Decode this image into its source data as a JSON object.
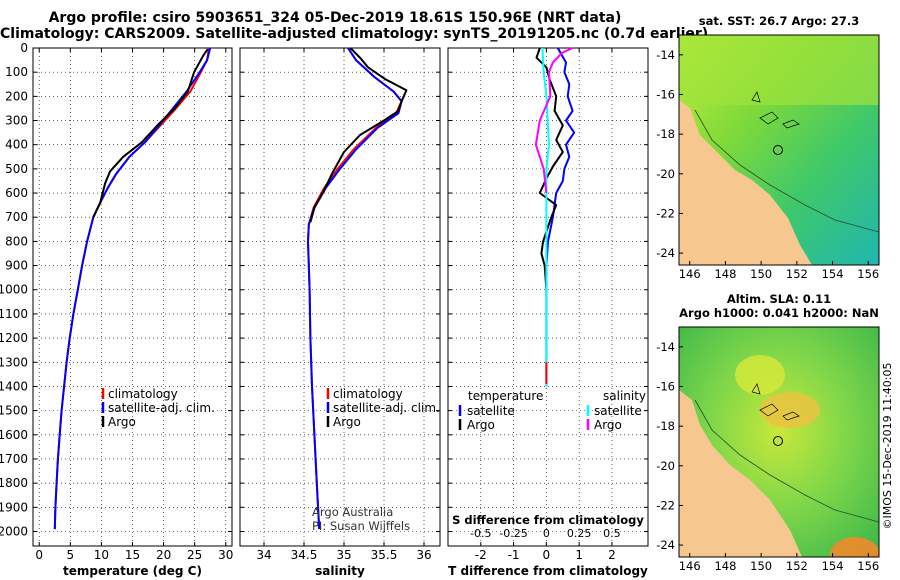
{
  "header": {
    "title_line1": "Argo profile: csiro 5903651_324 05-Dec-2019 18.61S 150.96E (NRT data)",
    "title_line2": "Climatology: CARS2009. Satellite-adjusted climatology: synTS_20191205.nc (0.7d earlier)"
  },
  "colors": {
    "climatology": "#ff0000",
    "satellite": "#0000ff",
    "argo": "#000000",
    "sat_salinity": "#00ffff",
    "argo_salinity": "#ff00ff",
    "land": "#f6c88f"
  },
  "depth_axis": {
    "ticks": [
      "0",
      "100",
      "200",
      "300",
      "400",
      "500",
      "600",
      "700",
      "800",
      "900",
      "1000",
      "1100",
      "1200",
      "1300",
      "1400",
      "1500",
      "1600",
      "1700",
      "1800",
      "1900",
      "2000"
    ],
    "range": [
      0,
      2060
    ]
  },
  "chart_data": [
    {
      "type": "line",
      "name": "temperature",
      "xlabel": "temperature (deg C)",
      "ylabel": "depth",
      "xlim": [
        -1,
        31
      ],
      "ylim": [
        2060,
        0
      ],
      "xticks": [
        "0",
        "5",
        "10",
        "15",
        "20",
        "25",
        "30"
      ],
      "xtick_values": [
        0,
        5,
        10,
        15,
        20,
        25,
        30
      ],
      "legend": [
        "climatology",
        "satellite-adj. clim.",
        "Argo"
      ],
      "series": [
        {
          "name": "climatology",
          "color": "#ff0000",
          "points": [
            [
              27.3,
              0
            ],
            [
              27.0,
              50
            ],
            [
              26.0,
              100
            ],
            [
              24.3,
              180
            ],
            [
              22.0,
              250
            ],
            [
              19.5,
              320
            ],
            [
              17.0,
              390
            ],
            [
              14.5,
              450
            ],
            [
              12.4,
              520
            ],
            [
              11.0,
              580
            ],
            [
              9.8,
              640
            ],
            [
              8.7,
              700
            ],
            [
              7.7,
              800
            ],
            [
              6.9,
              900
            ],
            [
              6.2,
              1000
            ],
            [
              5.5,
              1100
            ],
            [
              4.9,
              1200
            ],
            [
              4.4,
              1300
            ],
            [
              4.0,
              1400
            ],
            [
              3.6,
              1500
            ],
            [
              3.3,
              1600
            ],
            [
              3.0,
              1700
            ],
            [
              2.8,
              1800
            ],
            [
              2.6,
              1900
            ],
            [
              2.5,
              1990
            ]
          ]
        },
        {
          "name": "satellite-adj. clim.",
          "color": "#0000ff",
          "points": [
            [
              27.5,
              0
            ],
            [
              27.0,
              50
            ],
            [
              25.8,
              100
            ],
            [
              23.7,
              180
            ],
            [
              21.5,
              250
            ],
            [
              19.3,
              320
            ],
            [
              17.0,
              390
            ],
            [
              14.5,
              450
            ],
            [
              12.4,
              520
            ],
            [
              11.0,
              580
            ],
            [
              9.8,
              640
            ],
            [
              8.7,
              700
            ],
            [
              7.7,
              800
            ],
            [
              6.9,
              900
            ],
            [
              6.2,
              1000
            ],
            [
              5.5,
              1100
            ],
            [
              4.9,
              1200
            ],
            [
              4.4,
              1300
            ],
            [
              4.0,
              1400
            ],
            [
              3.6,
              1500
            ],
            [
              3.3,
              1600
            ],
            [
              3.0,
              1700
            ],
            [
              2.8,
              1800
            ],
            [
              2.6,
              1900
            ],
            [
              2.5,
              1990
            ]
          ]
        },
        {
          "name": "Argo",
          "color": "#000000",
          "points": [
            [
              27.1,
              5
            ],
            [
              26.4,
              30
            ],
            [
              24.9,
              100
            ],
            [
              23.9,
              180
            ],
            [
              21.8,
              250
            ],
            [
              19.0,
              320
            ],
            [
              16.5,
              390
            ],
            [
              13.5,
              450
            ],
            [
              11.4,
              510
            ],
            [
              10.6,
              560
            ],
            [
              9.8,
              640
            ],
            [
              8.7,
              700
            ]
          ]
        }
      ]
    },
    {
      "type": "line",
      "name": "salinity",
      "xlabel": "salinity",
      "ylabel": "depth",
      "xlim": [
        33.7,
        36.2
      ],
      "ylim": [
        2060,
        0
      ],
      "xticks": [
        "34",
        "34.5",
        "35",
        "35.5",
        "36"
      ],
      "xtick_values": [
        34,
        34.5,
        35,
        35.5,
        36
      ],
      "legend": [
        "climatology",
        "satellite-adj. clim.",
        "Argo"
      ],
      "annotation": [
        "Argo Australia",
        "PI: Susan Wijffels"
      ],
      "series": [
        {
          "name": "climatology",
          "color": "#ff0000",
          "points": [
            [
              35.05,
              0
            ],
            [
              35.15,
              50
            ],
            [
              35.38,
              120
            ],
            [
              35.62,
              180
            ],
            [
              35.72,
              220
            ],
            [
              35.65,
              270
            ],
            [
              35.4,
              330
            ],
            [
              35.12,
              420
            ],
            [
              34.92,
              500
            ],
            [
              34.75,
              580
            ],
            [
              34.62,
              660
            ],
            [
              34.56,
              730
            ],
            [
              34.55,
              800
            ],
            [
              34.56,
              900
            ],
            [
              34.57,
              1000
            ],
            [
              34.58,
              1200
            ],
            [
              34.6,
              1400
            ],
            [
              34.63,
              1600
            ],
            [
              34.66,
              1800
            ],
            [
              34.69,
              1990
            ]
          ]
        },
        {
          "name": "satellite-adj. clim.",
          "color": "#0000ff",
          "points": [
            [
              35.05,
              0
            ],
            [
              35.15,
              50
            ],
            [
              35.38,
              120
            ],
            [
              35.62,
              180
            ],
            [
              35.72,
              220
            ],
            [
              35.68,
              270
            ],
            [
              35.42,
              330
            ],
            [
              35.15,
              420
            ],
            [
              34.95,
              500
            ],
            [
              34.77,
              580
            ],
            [
              34.63,
              660
            ],
            [
              34.56,
              730
            ],
            [
              34.55,
              800
            ],
            [
              34.56,
              900
            ],
            [
              34.57,
              1000
            ],
            [
              34.58,
              1200
            ],
            [
              34.6,
              1400
            ],
            [
              34.63,
              1600
            ],
            [
              34.66,
              1800
            ],
            [
              34.69,
              1990
            ]
          ]
        },
        {
          "name": "Argo",
          "color": "#000000",
          "points": [
            [
              35.08,
              0
            ],
            [
              35.2,
              40
            ],
            [
              35.3,
              80
            ],
            [
              35.52,
              130
            ],
            [
              35.78,
              175
            ],
            [
              35.72,
              220
            ],
            [
              35.68,
              260
            ],
            [
              35.5,
              300
            ],
            [
              35.2,
              360
            ],
            [
              35.0,
              430
            ],
            [
              34.85,
              520
            ],
            [
              34.75,
              590
            ],
            [
              34.63,
              660
            ],
            [
              34.58,
              720
            ]
          ]
        }
      ]
    },
    {
      "type": "line",
      "name": "differences",
      "xlabel": "T difference from climatology",
      "xlabel_top": "S difference from climatology",
      "xlim": [
        -3,
        3.1
      ],
      "ylim": [
        2060,
        0
      ],
      "xticks": [
        "-2",
        "-1",
        "0",
        "1",
        "2"
      ],
      "xtick_values": [
        -2,
        -1,
        0,
        1,
        2
      ],
      "xticks_top": [
        "-0.5",
        "-0.25",
        "0",
        "0.25",
        "0.5"
      ],
      "xtick_top_values": [
        -0.5,
        -0.25,
        0,
        0.25,
        0.5
      ],
      "legend_left_title": "temperature",
      "legend_right_title": "salinity",
      "legend_left": [
        "satellite",
        "Argo"
      ],
      "legend_right": [
        "satellite",
        "Argo"
      ],
      "series": [
        {
          "name": "temperature satellite",
          "color": "#0000ff",
          "scale": "T",
          "points": [
            [
              0.35,
              0
            ],
            [
              0.6,
              60
            ],
            [
              0.55,
              100
            ],
            [
              0.7,
              150
            ],
            [
              0.65,
              200
            ],
            [
              0.8,
              260
            ],
            [
              0.6,
              300
            ],
            [
              0.85,
              350
            ],
            [
              0.6,
              400
            ],
            [
              0.7,
              450
            ],
            [
              0.55,
              500
            ],
            [
              0.5,
              550
            ],
            [
              0.3,
              600
            ],
            [
              0.2,
              700
            ],
            [
              0.05,
              800
            ],
            [
              0,
              900
            ],
            [
              0,
              1000
            ],
            [
              0,
              1200
            ],
            [
              0,
              1400
            ]
          ]
        },
        {
          "name": "temperature Argo",
          "color": "#000000",
          "scale": "T",
          "points": [
            [
              -0.2,
              0
            ],
            [
              -0.3,
              40
            ],
            [
              0.0,
              80
            ],
            [
              0.1,
              130
            ],
            [
              0.3,
              200
            ],
            [
              0.25,
              260
            ],
            [
              0.5,
              320
            ],
            [
              0.3,
              380
            ],
            [
              0.5,
              430
            ],
            [
              0.2,
              490
            ],
            [
              0.0,
              540
            ],
            [
              -0.2,
              600
            ],
            [
              0.3,
              650
            ],
            [
              0.15,
              700
            ],
            [
              -0.1,
              800
            ],
            [
              -0.15,
              850
            ],
            [
              -0.05,
              900
            ],
            [
              0,
              1000
            ]
          ]
        },
        {
          "name": "salinity satellite",
          "color": "#00ffff",
          "scale": "S",
          "points": [
            [
              -0.03,
              0
            ],
            [
              -0.02,
              100
            ],
            [
              0.0,
              200
            ],
            [
              0.01,
              300
            ],
            [
              0.02,
              400
            ],
            [
              0.0,
              500
            ],
            [
              0.0,
              600
            ],
            [
              0,
              1000
            ],
            [
              0,
              1400
            ]
          ]
        },
        {
          "name": "salinity Argo",
          "color": "#ff00ff",
          "scale": "S",
          "points": [
            [
              0.2,
              0
            ],
            [
              0.12,
              20
            ],
            [
              0.05,
              60
            ],
            [
              0.02,
              100
            ],
            [
              0.03,
              200
            ],
            [
              -0.05,
              300
            ],
            [
              -0.08,
              400
            ],
            [
              -0.02,
              500
            ],
            [
              0.0,
              600
            ]
          ]
        },
        {
          "name": "climatology bottom",
          "color": "#ff0000",
          "scale": "T",
          "points": [
            [
              0,
              1300
            ],
            [
              0,
              1390
            ]
          ]
        }
      ]
    }
  ],
  "maps": [
    {
      "title_lines": [
        "sat. SST: 26.7 Argo: 27.3"
      ],
      "xticks": [
        "146",
        "148",
        "150",
        "152",
        "154",
        "156"
      ],
      "yticks": [
        "-14",
        "-16",
        "-18",
        "-20",
        "-22",
        "-24"
      ]
    },
    {
      "title_lines": [
        "Altim. SLA: 0.11",
        "Argo h1000: 0.041 h2000: NaN"
      ],
      "xticks": [
        "146",
        "148",
        "150",
        "152",
        "154",
        "156"
      ],
      "yticks": [
        "-14",
        "-16",
        "-18",
        "-20",
        "-22",
        "-24"
      ]
    }
  ],
  "credit": "©IMOS 15-Dec-2019 11:40:05"
}
